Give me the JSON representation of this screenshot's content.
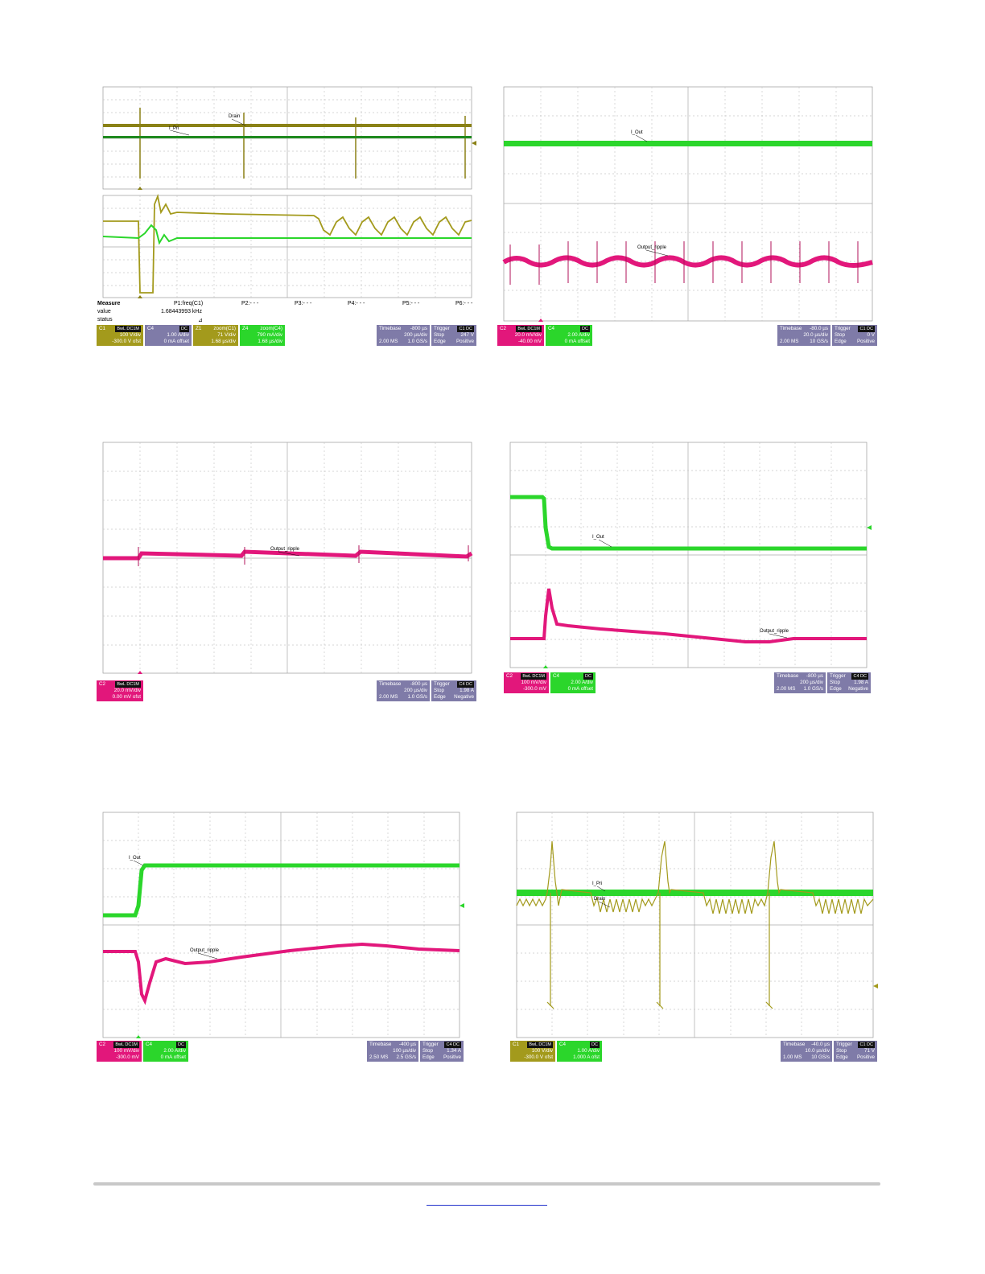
{
  "colors": {
    "ch1": "#a39a1c",
    "ch2": "#e2177b",
    "ch4": "#2bd62b",
    "grid": "#c0c0c0",
    "timebase": "#7f7ba8"
  },
  "scope1": {
    "labels": {
      "drain": "Drain",
      "ipri": "I_Pri"
    },
    "measure": {
      "h_measure": "Measure",
      "h_value": "value",
      "h_status": "status",
      "p1": "P1:freq(C1)",
      "p1_val": "1.68443993 kHz",
      "p1_status": "⊿",
      "p2": "P2:- - -",
      "p3": "P3:- - -",
      "p4": "P4:- - -",
      "p5": "P5:- - -",
      "p6": "P6:- - -"
    },
    "boxes": [
      {
        "name": "C1",
        "tag": "BwL DC1M",
        "l1": "100 V/div",
        "l2": "-300.0 V ofst"
      },
      {
        "name": "C4",
        "tag": "DC",
        "l1": "1.00 A/div",
        "l2": "0 mA offset"
      },
      {
        "name": "Z1",
        "tag": "zoom(C1)",
        "l1": "71 V/div",
        "l2": "1.68 µs/div"
      },
      {
        "name": "Z4",
        "tag": "zoom(C4)",
        "l1": "790 mA/div",
        "l2": "1.68 µs/div"
      }
    ],
    "timebase": {
      "h": "Timebase",
      "hv": "-800 µs",
      "l1": "200 µs/div",
      "l2a": "2.00 MS",
      "l2b": "1.0 GS/s"
    },
    "trigger": {
      "h": "Trigger",
      "tag": "C1 DC",
      "l1a": "Stop",
      "l1b": "247 V",
      "l2a": "Edge",
      "l2b": "Positive"
    }
  },
  "scope2": {
    "labels": {
      "iout": "I_Out",
      "ripple": "Output_ripple"
    },
    "boxes": [
      {
        "name": "C2",
        "tag": "BwL DC1M",
        "l1": "20.0 mV/div",
        "l2": "-40.00 mV"
      },
      {
        "name": "C4",
        "tag": "DC",
        "l1": "2.00 A/div",
        "l2": "0 mA offset"
      }
    ],
    "timebase": {
      "h": "Timebase",
      "hv": "-80.0 µs",
      "l1": "20.0 µs/div",
      "l2a": "2.00 MS",
      "l2b": "10 GS/s"
    },
    "trigger": {
      "h": "Trigger",
      "tag": "C1 DC",
      "l1a": "Stop",
      "l1b": "0 V",
      "l2a": "Edge",
      "l2b": "Positive"
    }
  },
  "scope3": {
    "labels": {
      "ripple": "Output_ripple"
    },
    "boxes": [
      {
        "name": "C2",
        "tag": "BwL DC1M",
        "l1": "20.0 mV/div",
        "l2": "0.00 mV ofst"
      }
    ],
    "timebase": {
      "h": "Timebase",
      "hv": "-800 µs",
      "l1": "200 µs/div",
      "l2a": "2.00 MS",
      "l2b": "1.0 GS/s"
    },
    "trigger": {
      "h": "Trigger",
      "tag": "C4 DC",
      "l1a": "Stop",
      "l1b": "1.98 A",
      "l2a": "Edge",
      "l2b": "Negative"
    }
  },
  "scope4": {
    "labels": {
      "iout": "I_Out",
      "ripple": "Output_ripple"
    },
    "boxes": [
      {
        "name": "C2",
        "tag": "BwL DC1M",
        "l1": "100 mV/div",
        "l2": "-300.0 mV"
      },
      {
        "name": "C4",
        "tag": "DC",
        "l1": "2.00 A/div",
        "l2": "0 mA offset"
      }
    ],
    "timebase": {
      "h": "Timebase",
      "hv": "-800 µs",
      "l1": "200 µs/div",
      "l2a": "2.00 MS",
      "l2b": "1.0 GS/s"
    },
    "trigger": {
      "h": "Trigger",
      "tag": "C4 DC",
      "l1a": "Stop",
      "l1b": "1.98 A",
      "l2a": "Edge",
      "l2b": "Negative"
    }
  },
  "scope5": {
    "labels": {
      "iout": "I_Out",
      "ripple": "Output_ripple"
    },
    "boxes": [
      {
        "name": "C2",
        "tag": "BwL DC1M",
        "l1": "100 mV/div",
        "l2": "-300.0 mV"
      },
      {
        "name": "C4",
        "tag": "DC",
        "l1": "2.00 A/div",
        "l2": "0 mA offset"
      }
    ],
    "timebase": {
      "h": "Timebase",
      "hv": "-400 µs",
      "l1": "100 µs/div",
      "l2a": "2.50 MS",
      "l2b": "2.5 GS/s"
    },
    "trigger": {
      "h": "Trigger",
      "tag": "C4 DC",
      "l1a": "Stop",
      "l1b": "1.34 A",
      "l2a": "Edge",
      "l2b": "Positive"
    }
  },
  "scope6": {
    "labels": {
      "ipri": "I_Pri",
      "drain": "Drain"
    },
    "boxes": [
      {
        "name": "C1",
        "tag": "BwL DC1M",
        "l1": "100 V/div",
        "l2": "-300.0 V ofst"
      },
      {
        "name": "C4",
        "tag": "DC",
        "l1": "1.00 A/div",
        "l2": "1.000 A ofst"
      }
    ],
    "timebase": {
      "h": "Timebase",
      "hv": "-40.0 µs",
      "l1": "10.0 µs/div",
      "l2a": "1.00 MS",
      "l2b": "10 GS/s"
    },
    "trigger": {
      "h": "Trigger",
      "tag": "C1 DC",
      "l1a": "Stop",
      "l1b": "71 V",
      "l2a": "Edge",
      "l2b": "Positive"
    }
  }
}
